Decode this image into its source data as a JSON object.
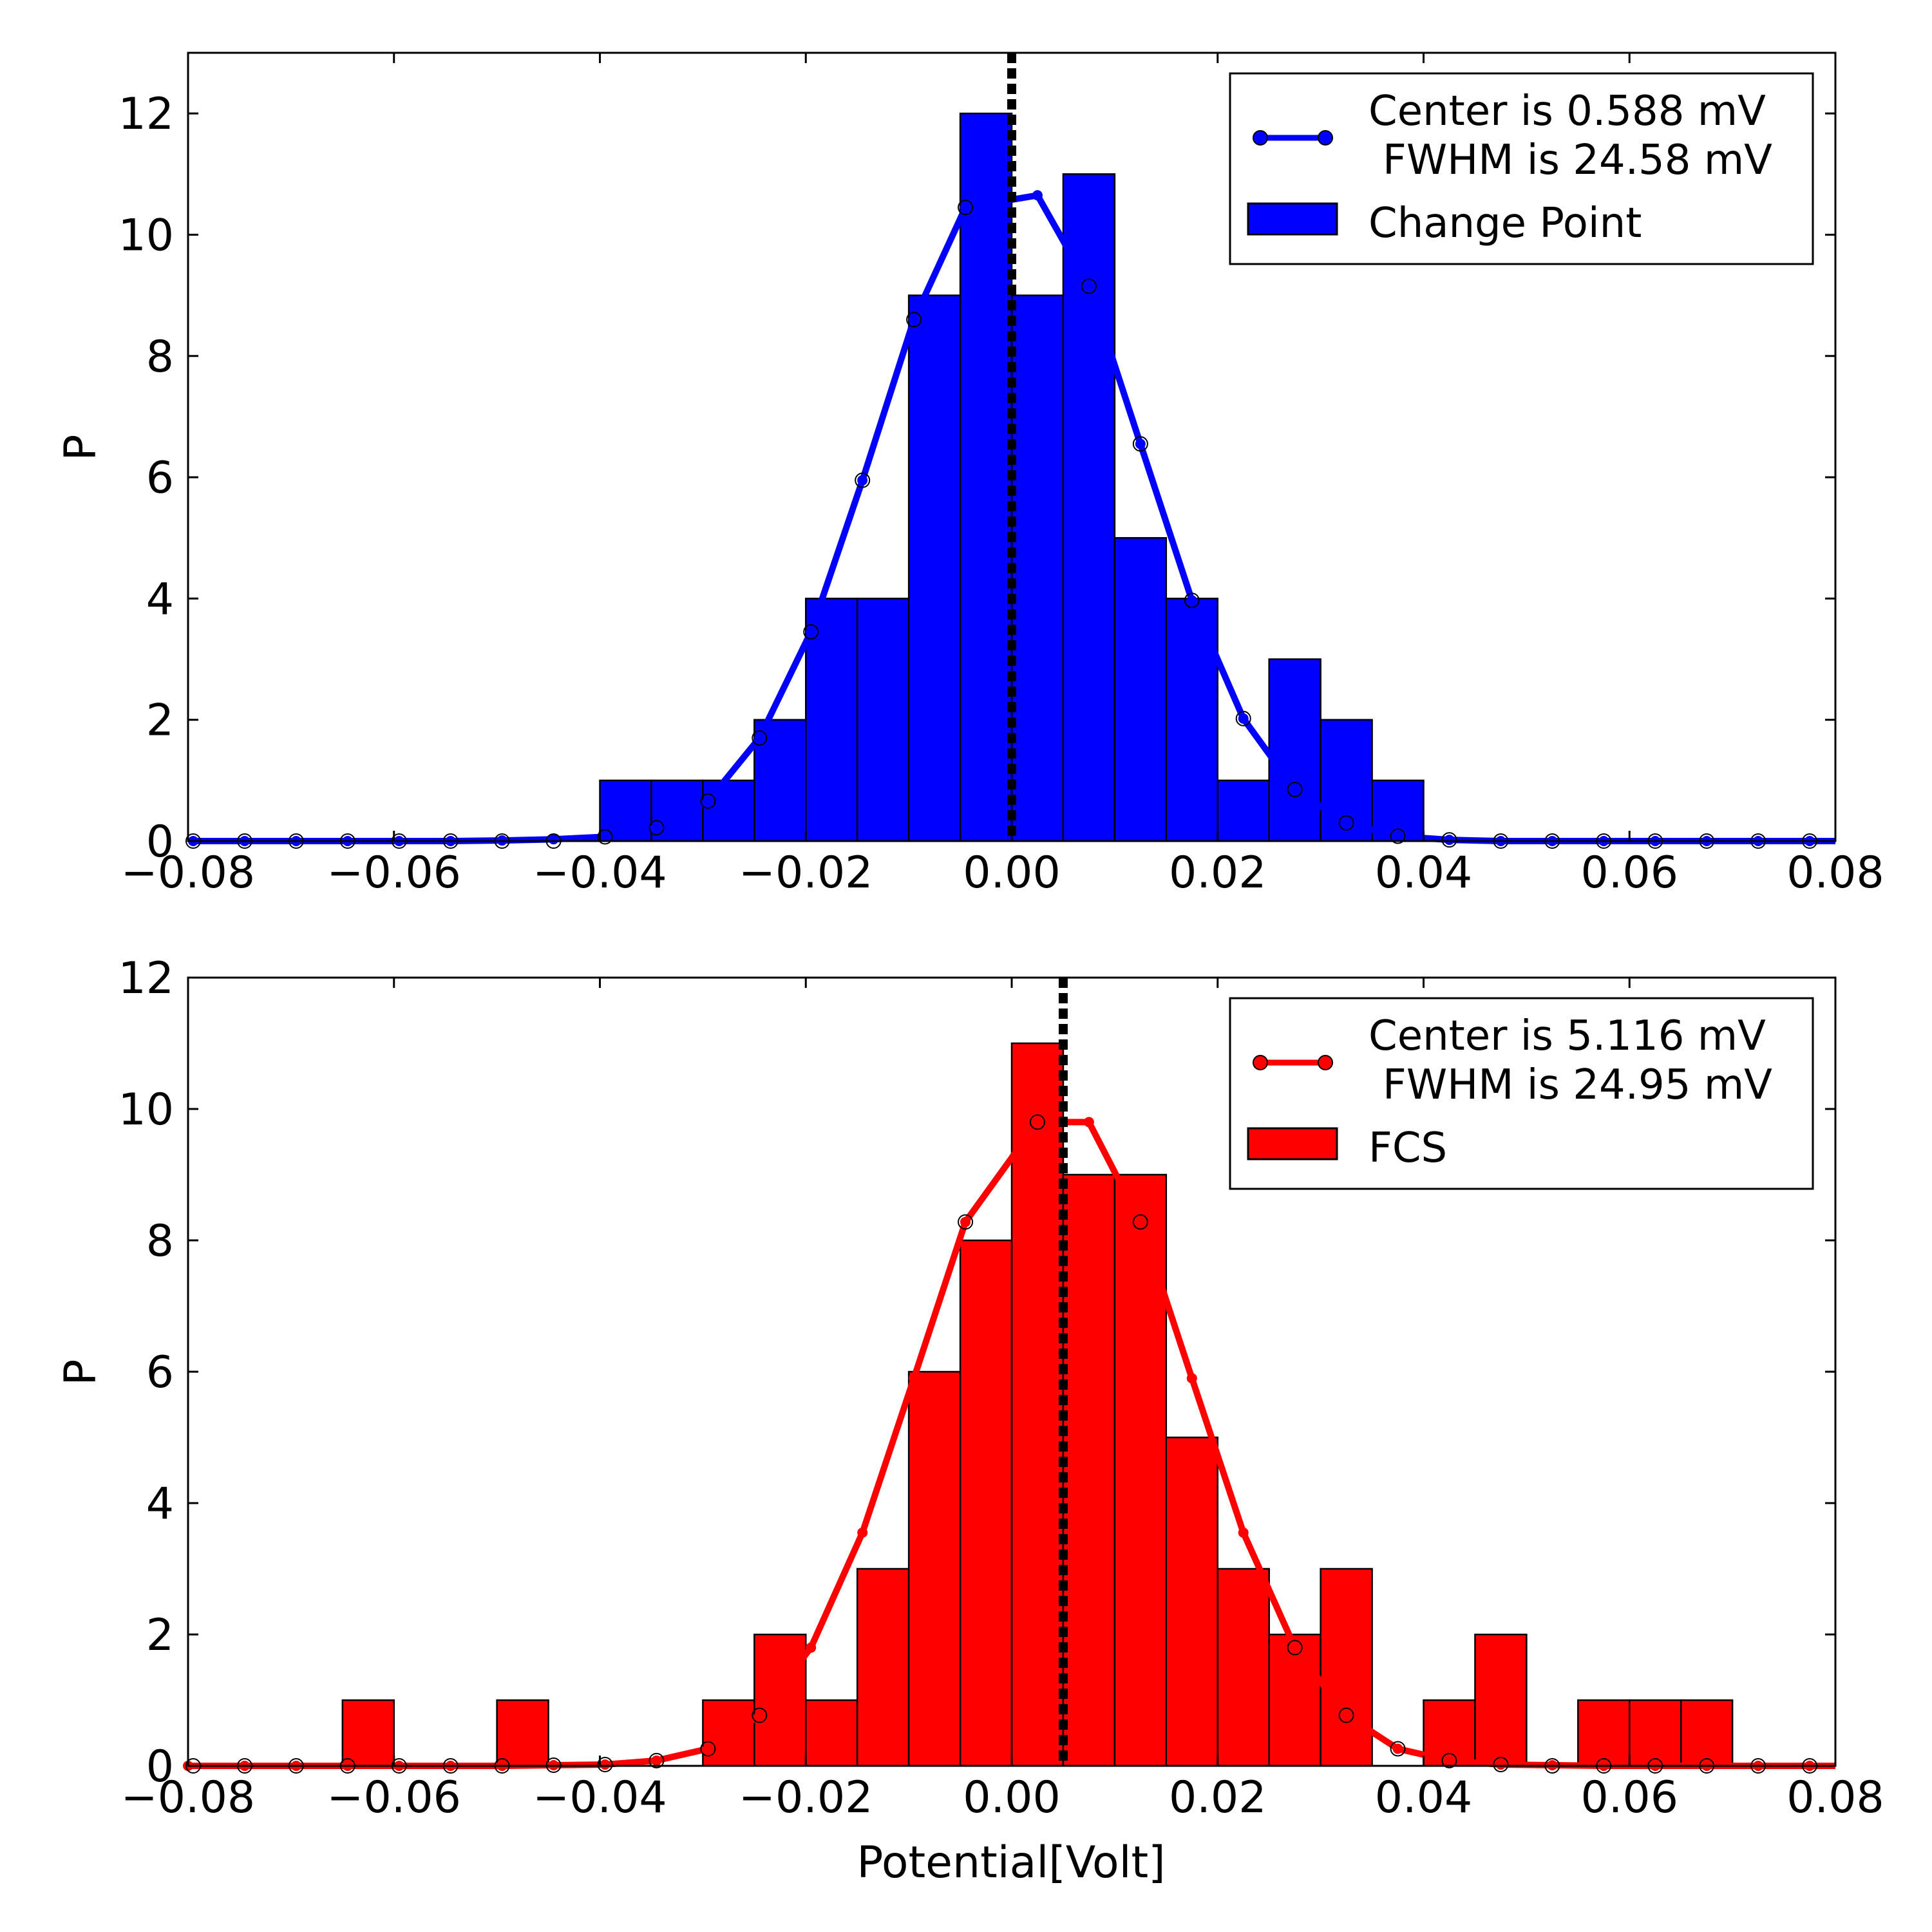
{
  "figure": {
    "xlabel": "Potential[Volt]"
  },
  "chart_data": [
    {
      "type": "bar",
      "title": "",
      "xlabel": "",
      "ylabel": "P",
      "xlim": [
        -0.08,
        0.08
      ],
      "ylim": [
        0,
        13
      ],
      "xticks": [
        -0.08,
        -0.06,
        -0.04,
        -0.02,
        0.0,
        0.02,
        0.04,
        0.06,
        0.08
      ],
      "xtick_labels": [
        "−0.08",
        "−0.06",
        "−0.04",
        "−0.02",
        "0.00",
        "0.02",
        "0.04",
        "0.06",
        "0.08"
      ],
      "yticks": [
        0,
        2,
        4,
        6,
        8,
        10,
        12
      ],
      "ytick_labels": [
        "0",
        "2",
        "4",
        "6",
        "8",
        "10",
        "12"
      ],
      "color": "#0000ff",
      "bin_width": 0.005,
      "bins": [
        {
          "left": -0.04,
          "value": 1
        },
        {
          "left": -0.035,
          "value": 1
        },
        {
          "left": -0.03,
          "value": 1
        },
        {
          "left": -0.025,
          "value": 2
        },
        {
          "left": -0.02,
          "value": 4
        },
        {
          "left": -0.015,
          "value": 4
        },
        {
          "left": -0.01,
          "value": 9
        },
        {
          "left": -0.005,
          "value": 12
        },
        {
          "left": 0.0,
          "value": 9
        },
        {
          "left": 0.005,
          "value": 11
        },
        {
          "left": 0.01,
          "value": 5
        },
        {
          "left": 0.015,
          "value": 4
        },
        {
          "left": 0.02,
          "value": 1
        },
        {
          "left": 0.025,
          "value": 3
        },
        {
          "left": 0.03,
          "value": 2
        },
        {
          "left": 0.035,
          "value": 1
        }
      ],
      "fit": {
        "name": "Center is 0.588 mV\n FWHM is 24.58 mV",
        "x": [
          -0.0795,
          -0.0745,
          -0.0695,
          -0.0645,
          -0.0595,
          -0.0545,
          -0.0495,
          -0.0445,
          -0.0395,
          -0.0345,
          -0.0295,
          -0.0245,
          -0.0195,
          -0.0145,
          -0.0095,
          -0.0045,
          0.0025,
          0.0075,
          0.0125,
          0.0175,
          0.0225,
          0.0275,
          0.0325,
          0.0375,
          0.0425,
          0.0475,
          0.0525,
          0.0575,
          0.0625,
          0.0675,
          0.0725,
          0.0775,
          0.08
        ],
        "y": [
          0,
          0,
          0,
          0,
          0,
          0,
          0.01,
          0.03,
          0.07,
          0.22,
          0.66,
          1.7,
          3.45,
          5.95,
          8.6,
          10.45,
          10.65,
          9.15,
          6.55,
          3.97,
          2.02,
          0.85,
          0.3,
          0.08,
          0.02,
          0,
          0,
          0,
          0,
          0,
          0,
          0,
          0
        ],
        "hollow_markers": [
          {
            "x": -0.0795,
            "y": 0
          },
          {
            "x": -0.0745,
            "y": 0
          },
          {
            "x": -0.0695,
            "y": 0
          },
          {
            "x": -0.0645,
            "y": 0
          },
          {
            "x": -0.0595,
            "y": 0
          },
          {
            "x": -0.0545,
            "y": 0
          },
          {
            "x": -0.0495,
            "y": 0
          },
          {
            "x": -0.0445,
            "y": 0
          },
          {
            "x": -0.0395,
            "y": 0.07
          },
          {
            "x": -0.0345,
            "y": 0.22
          },
          {
            "x": -0.0295,
            "y": 0.66
          },
          {
            "x": -0.0245,
            "y": 1.7
          },
          {
            "x": -0.0195,
            "y": 3.45
          },
          {
            "x": -0.0145,
            "y": 5.95
          },
          {
            "x": -0.0095,
            "y": 8.6
          },
          {
            "x": -0.0045,
            "y": 10.45
          },
          {
            "x": 0.0075,
            "y": 9.15
          },
          {
            "x": 0.0125,
            "y": 6.55
          },
          {
            "x": 0.0175,
            "y": 3.97
          },
          {
            "x": 0.0225,
            "y": 2.02
          },
          {
            "x": 0.0275,
            "y": 0.85
          },
          {
            "x": 0.0325,
            "y": 0.3
          },
          {
            "x": 0.0375,
            "y": 0.08
          },
          {
            "x": 0.0425,
            "y": 0.02
          },
          {
            "x": 0.0475,
            "y": 0
          },
          {
            "x": 0.0525,
            "y": 0
          },
          {
            "x": 0.0575,
            "y": 0
          },
          {
            "x": 0.0625,
            "y": 0
          },
          {
            "x": 0.0675,
            "y": 0
          },
          {
            "x": 0.0725,
            "y": 0
          },
          {
            "x": 0.0775,
            "y": 0
          }
        ]
      },
      "vline": 0.0,
      "legend": {
        "position": "top-right",
        "line_label_1": "Center is 0.588 mV",
        "line_label_2": "FWHM is 24.58 mV",
        "bar_label": "Change Point"
      }
    },
    {
      "type": "bar",
      "title": "",
      "xlabel": "Potential[Volt]",
      "ylabel": "P",
      "xlim": [
        -0.08,
        0.08
      ],
      "ylim": [
        0,
        12
      ],
      "xticks": [
        -0.08,
        -0.06,
        -0.04,
        -0.02,
        0.0,
        0.02,
        0.04,
        0.06,
        0.08
      ],
      "xtick_labels": [
        "−0.08",
        "−0.06",
        "−0.04",
        "−0.02",
        "0.00",
        "0.02",
        "0.04",
        "0.06",
        "0.08"
      ],
      "yticks": [
        0,
        2,
        4,
        6,
        8,
        10,
        12
      ],
      "ytick_labels": [
        "0",
        "2",
        "4",
        "6",
        "8",
        "10",
        "12"
      ],
      "color": "#ff0000",
      "bin_width": 0.005,
      "bins": [
        {
          "left": -0.065,
          "value": 1
        },
        {
          "left": -0.05,
          "value": 1
        },
        {
          "left": -0.03,
          "value": 1
        },
        {
          "left": -0.025,
          "value": 2
        },
        {
          "left": -0.02,
          "value": 1
        },
        {
          "left": -0.015,
          "value": 3
        },
        {
          "left": -0.01,
          "value": 6
        },
        {
          "left": -0.005,
          "value": 8
        },
        {
          "left": 0.0,
          "value": 11
        },
        {
          "left": 0.005,
          "value": 9
        },
        {
          "left": 0.01,
          "value": 9
        },
        {
          "left": 0.015,
          "value": 5
        },
        {
          "left": 0.02,
          "value": 3
        },
        {
          "left": 0.025,
          "value": 2
        },
        {
          "left": 0.03,
          "value": 3
        },
        {
          "left": 0.04,
          "value": 1
        },
        {
          "left": 0.045,
          "value": 2
        },
        {
          "left": 0.055,
          "value": 1
        },
        {
          "left": 0.06,
          "value": 1
        },
        {
          "left": 0.065,
          "value": 1
        }
      ],
      "fit": {
        "name": "Center is 5.116 mV\n FWHM is 24.95 mV",
        "x": [
          -0.08,
          -0.0745,
          -0.0695,
          -0.0645,
          -0.0595,
          -0.0545,
          -0.0495,
          -0.0445,
          -0.0395,
          -0.0345,
          -0.0295,
          -0.0245,
          -0.0195,
          -0.0145,
          -0.0095,
          -0.0045,
          0.0025,
          0.0075,
          0.0125,
          0.0175,
          0.0225,
          0.0275,
          0.0325,
          0.0375,
          0.0425,
          0.0475,
          0.0525,
          0.0575,
          0.0625,
          0.0675,
          0.0725,
          0.0775,
          0.08
        ],
        "y": [
          0,
          0,
          0,
          0,
          0,
          0,
          0,
          0.01,
          0.02,
          0.08,
          0.26,
          0.77,
          1.8,
          3.55,
          5.9,
          8.28,
          9.8,
          9.8,
          8.28,
          5.9,
          3.55,
          1.8,
          0.77,
          0.26,
          0.08,
          0.02,
          0.01,
          0,
          0,
          0,
          0,
          0,
          0
        ],
        "hollow_markers": [
          {
            "x": -0.0795,
            "y": 0
          },
          {
            "x": -0.0745,
            "y": 0
          },
          {
            "x": -0.0695,
            "y": 0
          },
          {
            "x": -0.0645,
            "y": 0
          },
          {
            "x": -0.0595,
            "y": 0
          },
          {
            "x": -0.0545,
            "y": 0
          },
          {
            "x": -0.0495,
            "y": 0
          },
          {
            "x": -0.0445,
            "y": 0.01
          },
          {
            "x": -0.0395,
            "y": 0.02
          },
          {
            "x": -0.0345,
            "y": 0.08
          },
          {
            "x": -0.0295,
            "y": 0.26
          },
          {
            "x": -0.0245,
            "y": 0.77
          },
          {
            "x": -0.0045,
            "y": 8.28
          },
          {
            "x": 0.0025,
            "y": 9.8
          },
          {
            "x": 0.0125,
            "y": 8.28
          },
          {
            "x": 0.0275,
            "y": 1.8
          },
          {
            "x": 0.0325,
            "y": 0.77
          },
          {
            "x": 0.0375,
            "y": 0.26
          },
          {
            "x": 0.0425,
            "y": 0.08
          },
          {
            "x": 0.0475,
            "y": 0.02
          },
          {
            "x": 0.0525,
            "y": 0
          },
          {
            "x": 0.0575,
            "y": 0
          },
          {
            "x": 0.0625,
            "y": 0
          },
          {
            "x": 0.0675,
            "y": 0
          },
          {
            "x": 0.0725,
            "y": 0
          },
          {
            "x": 0.0775,
            "y": 0
          }
        ]
      },
      "vline": 0.005,
      "legend": {
        "position": "top-right",
        "line_label_1": "Center is 5.116 mV",
        "line_label_2": "FWHM is 24.95 mV",
        "bar_label": "FCS"
      }
    }
  ]
}
